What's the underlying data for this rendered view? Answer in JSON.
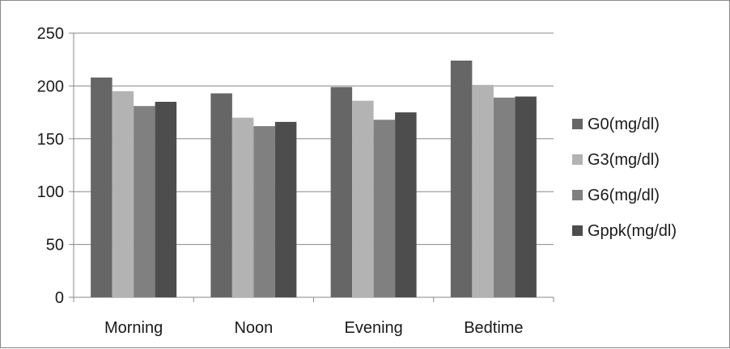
{
  "chart_data": {
    "type": "bar",
    "categories": [
      "Morning",
      "Noon",
      "Evening",
      "Bedtime"
    ],
    "series": [
      {
        "name": "G0(mg/dl)",
        "values": [
          208,
          193,
          199,
          224
        ],
        "color": "#666666"
      },
      {
        "name": "G3(mg/dl)",
        "values": [
          195,
          170,
          186,
          201
        ],
        "color": "#b3b3b3"
      },
      {
        "name": "G6(mg/dl)",
        "values": [
          181,
          162,
          168,
          189
        ],
        "color": "#808080"
      },
      {
        "name": "Gppk(mg/dl)",
        "values": [
          185,
          166,
          175,
          190
        ],
        "color": "#4d4d4d"
      }
    ],
    "yticks": [
      "0",
      "50",
      "100",
      "150",
      "200",
      "250"
    ],
    "ylim": [
      0,
      250
    ],
    "grid": true,
    "legend_position": "right",
    "title": "",
    "xlabel": "",
    "ylabel": ""
  }
}
